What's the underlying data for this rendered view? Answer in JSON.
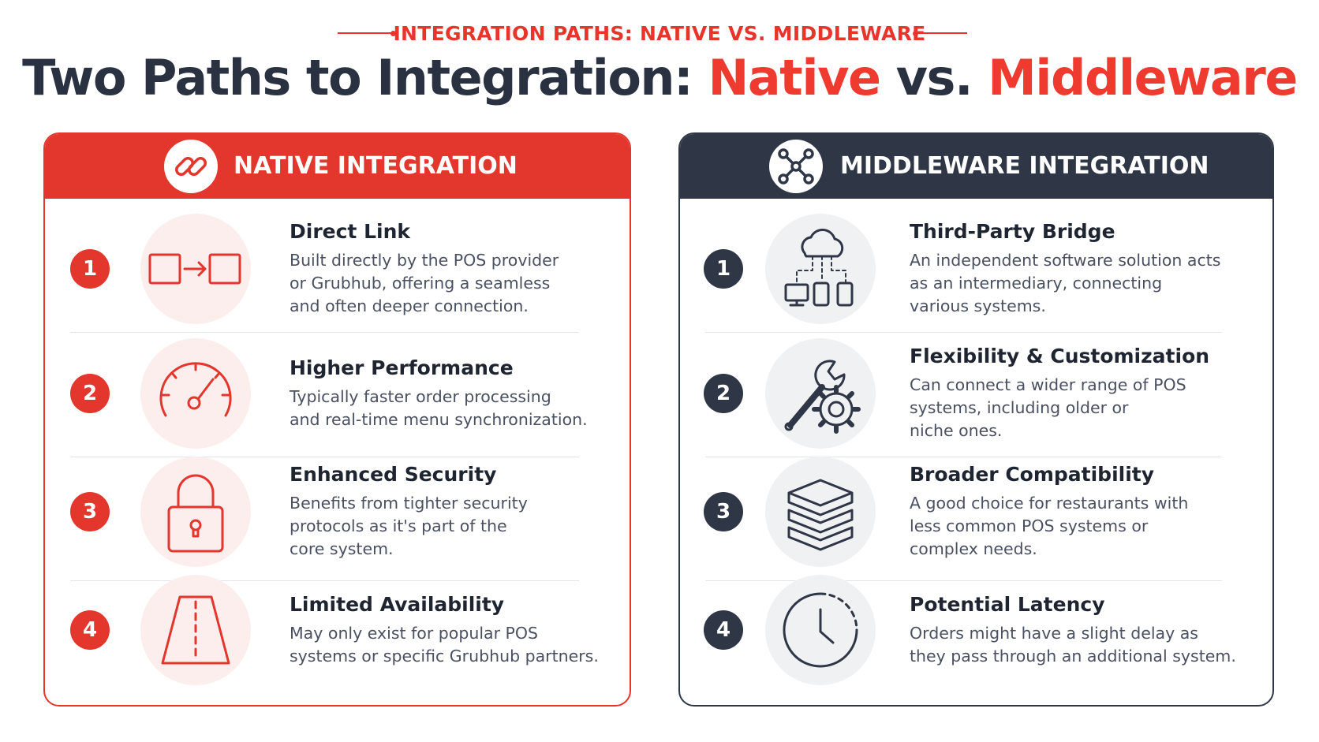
{
  "header": {
    "eyebrow": "INTEGRATION PATHS: NATIVE VS. MIDDLEWARE",
    "title": {
      "lead": "Two Paths to Integration:",
      "native": "Native",
      "joiner": "vs.",
      "middleware": "Middleware"
    }
  },
  "panels": [
    {
      "title": "NATIVE INTEGRATION",
      "items": [
        {
          "number": "1",
          "title": "Direct Link",
          "lines": [
            "Built directly by the POS provider",
            "or Grubhub, offering a seamless",
            "and often deeper connection."
          ]
        },
        {
          "number": "2",
          "title": "Higher Performance",
          "lines": [
            "Typically faster order processing",
            "and real-time menu synchronization."
          ]
        },
        {
          "number": "3",
          "title": "Enhanced Security",
          "lines": [
            "Benefits from tighter security",
            "protocols as it's part of the",
            "core system."
          ]
        },
        {
          "number": "4",
          "title": "Limited Availability",
          "lines": [
            "May only exist for popular POS",
            "systems or specific Grubhub partners."
          ]
        }
      ]
    },
    {
      "title": "MIDDLEWARE INTEGRATION",
      "items": [
        {
          "number": "1",
          "title": "Third-Party Bridge",
          "lines": [
            "An independent software solution acts",
            "as an intermediary, connecting",
            "various systems."
          ]
        },
        {
          "number": "2",
          "title": "Flexibility & Customization",
          "lines": [
            "Can connect a wider range of POS",
            "systems, including older or",
            "niche ones."
          ]
        },
        {
          "number": "3",
          "title": "Broader Compatibility",
          "lines": [
            "A good choice for restaurants with",
            "less common POS systems or",
            "complex needs."
          ]
        },
        {
          "number": "4",
          "title": "Potential Latency",
          "lines": [
            "Orders might have a slight delay as",
            "they pass through an additional system."
          ]
        }
      ]
    }
  ]
}
